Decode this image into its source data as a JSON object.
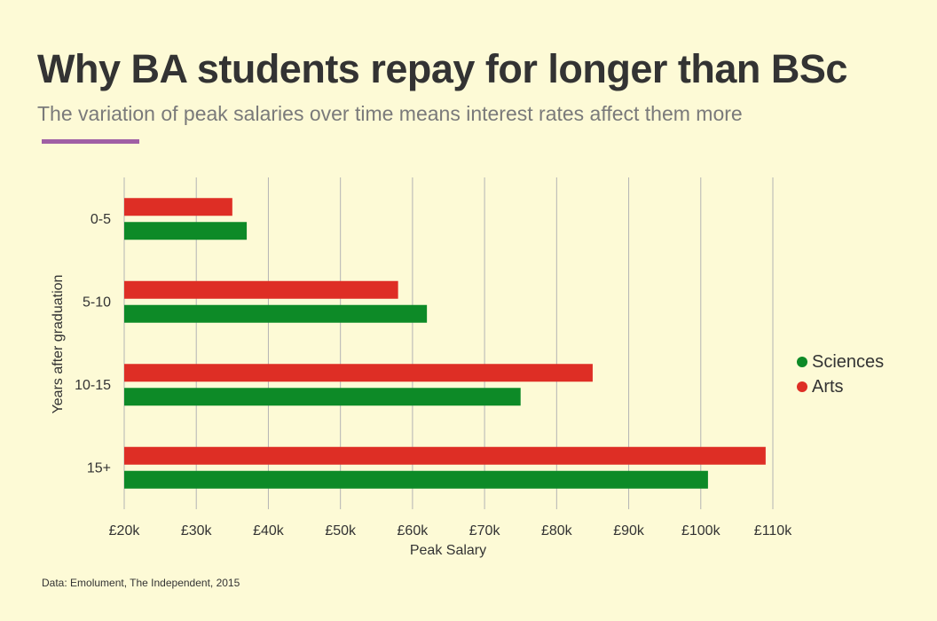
{
  "header": {
    "title": "Why BA students repay for longer than BSc",
    "subtitle": "The variation of peak salaries over time means interest rates affect them more"
  },
  "footer": {
    "source": "Data: Emolument, The Independent, 2015"
  },
  "colors": {
    "accent": "#a05fa5",
    "sciences": "#0d8a27",
    "arts": "#de2e25",
    "grid": "#b4b4b4"
  },
  "legend": {
    "items": [
      {
        "label": "Sciences",
        "color": "#0d8a27"
      },
      {
        "label": "Arts",
        "color": "#de2e25"
      }
    ]
  },
  "chart_data": {
    "type": "bar",
    "orientation": "horizontal",
    "title": "Why BA students repay for longer than BSc",
    "subtitle": "The variation of peak salaries over time means interest rates affect them more",
    "xlabel": "Peak Salary",
    "ylabel": "Years after graduation",
    "categories": [
      "0-5",
      "5-10",
      "10-15",
      "15+"
    ],
    "series": [
      {
        "name": "Arts",
        "values": [
          35000,
          58000,
          85000,
          109000
        ]
      },
      {
        "name": "Sciences",
        "values": [
          37000,
          62000,
          75000,
          101000
        ]
      }
    ],
    "xlim": [
      20000,
      110000
    ],
    "xticks": [
      20000,
      30000,
      40000,
      50000,
      60000,
      70000,
      80000,
      90000,
      100000,
      110000
    ],
    "xtick_labels": [
      "£20k",
      "£30k",
      "£40k",
      "£50k",
      "£60k",
      "£70k",
      "£80k",
      "£90k",
      "£100k",
      "£110k"
    ],
    "grid": true,
    "legend_position": "right"
  }
}
